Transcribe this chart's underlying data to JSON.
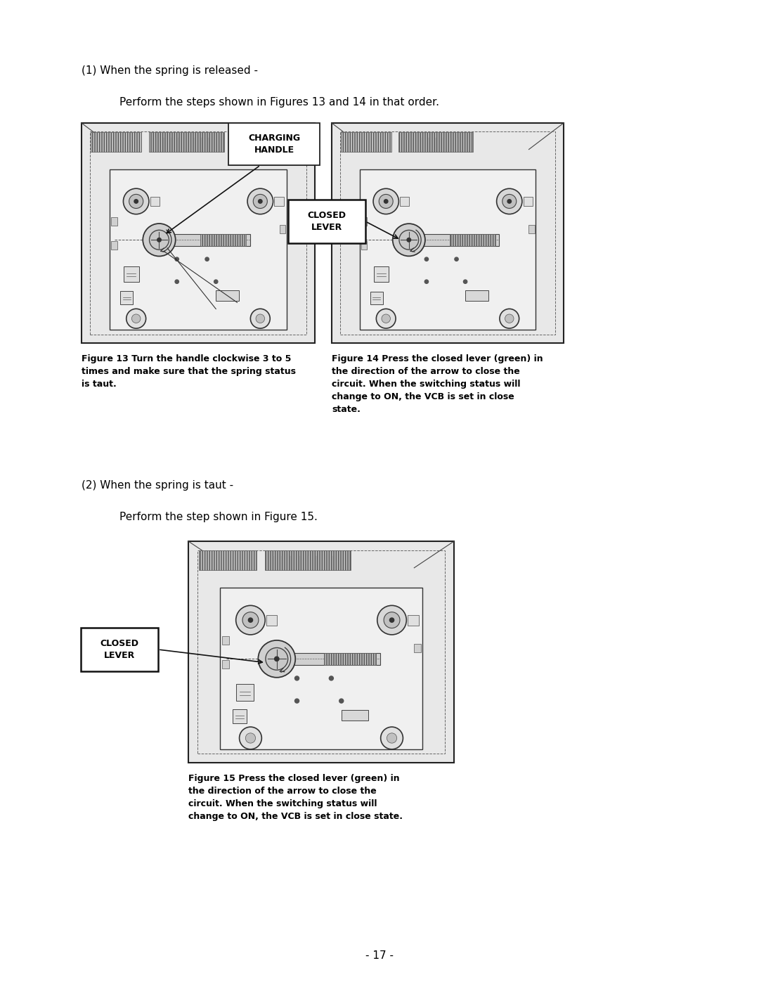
{
  "bg_color": "#ffffff",
  "text_color": "#000000",
  "page_number": "- 17 -",
  "section1_header": "(1) When the spring is released -",
  "section1_subtext": "Perform the steps shown in Figures 13 and 14 in that order.",
  "fig13_caption_bold": "Figure 13 Turn the handle clockwise 3 to 5\ntimes and make sure that the spring status\nis taut.",
  "fig14_caption_bold": "Figure 14 Press the closed lever (green) in\nthe direction of the arrow to close the\ncircuit. When the switching status will\nchange to ON, the VCB is set in close\nstate.",
  "charging_handle_label": "CHARGING\nHANDLE",
  "closed_lever_label1": "CLOSED\nLEVER",
  "closed_lever_label2": "CLOSED\nLEVER",
  "section2_header": "(2) When the spring is taut -",
  "section2_subtext": "Perform the step shown in Figure 15.",
  "fig15_caption_bold": "Figure 15 Press the closed lever (green) in\nthe direction of the arrow to close the\ncircuit. When the switching status will\nchange to ON, the VCB is set in close state.",
  "light_gray": "#d0d0d0",
  "mid_gray": "#a0a0a0",
  "dark_gray": "#505050",
  "outer_fill": "#f2f2f2",
  "inner_fill": "#ececec",
  "panel_fill": "#e8e8e8"
}
